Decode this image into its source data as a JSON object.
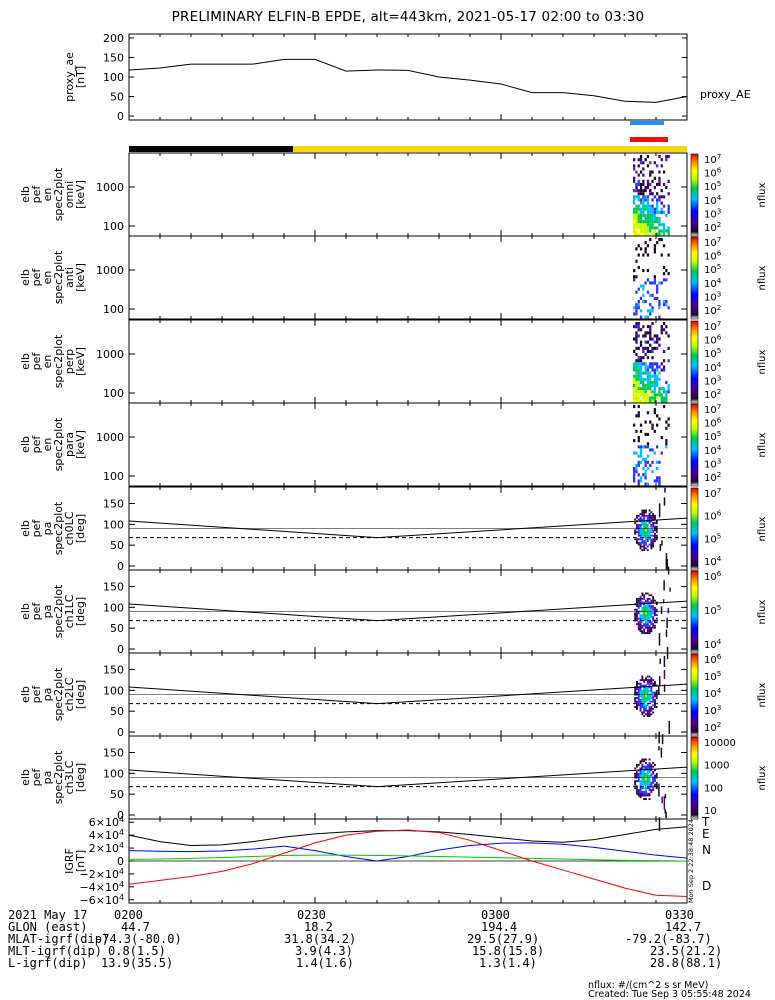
{
  "title": "PRELIMINARY ELFIN-B EPDE, alt=443km, 2021-05-17 02:00 to 03:30",
  "chart_data": [
    {
      "type": "line",
      "ylabel_lines": [
        "proxy_ae",
        "[nT]"
      ],
      "legend": "proxy_AE",
      "yticks": [
        "200",
        "150",
        "100",
        "50",
        "0"
      ],
      "ylim": [
        -10,
        210
      ],
      "x_minutes": [
        0,
        5,
        10,
        15,
        20,
        25,
        30,
        35,
        40,
        45,
        50,
        55,
        60,
        65,
        70,
        75,
        80,
        85,
        90
      ],
      "values": [
        118,
        123,
        133,
        133,
        133,
        145,
        145,
        115,
        118,
        117,
        100,
        92,
        82,
        60,
        60,
        52,
        38,
        35,
        50
      ]
    },
    {
      "type": "heatmap",
      "ylabel_lines": [
        "elb",
        "pef",
        "en",
        "spec2plot",
        "omni",
        "[keV]"
      ],
      "yticks": [
        "1000",
        "100"
      ],
      "cbar_ticks": [
        "10^7",
        "10^6",
        "10^5",
        "10^4",
        "10^3",
        "10^2"
      ],
      "cbar_label": "nflux"
    },
    {
      "type": "heatmap",
      "ylabel_lines": [
        "elb",
        "pef",
        "en",
        "spec2plot",
        "anti",
        "[keV]"
      ],
      "yticks": [
        "1000",
        "100"
      ],
      "cbar_ticks": [
        "10^7",
        "10^6",
        "10^5",
        "10^4",
        "10^3",
        "10^2"
      ],
      "cbar_label": "nflux"
    },
    {
      "type": "heatmap",
      "ylabel_lines": [
        "elb",
        "pef",
        "en",
        "spec2plot",
        "perp",
        "[keV]"
      ],
      "yticks": [
        "1000",
        "100"
      ],
      "cbar_ticks": [
        "10^7",
        "10^6",
        "10^5",
        "10^4",
        "10^3",
        "10^2"
      ],
      "cbar_label": "nflux"
    },
    {
      "type": "heatmap",
      "ylabel_lines": [
        "elb",
        "pef",
        "en",
        "spec2plot",
        "para",
        "[keV]"
      ],
      "yticks": [
        "1000",
        "100"
      ],
      "cbar_ticks": [
        "10^7",
        "10^6",
        "10^5",
        "10^4",
        "10^3",
        "10^2"
      ],
      "cbar_label": "nflux"
    },
    {
      "type": "heatmap",
      "ylabel_lines": [
        "elb",
        "pef",
        "pa",
        "spec2plot",
        "ch0LC",
        "[deg]"
      ],
      "yticks": [
        "150",
        "100",
        "50",
        "0"
      ],
      "cbar_ticks": [
        "10^7",
        "10^6",
        "10^5",
        "10^4"
      ],
      "cbar_label": "nflux"
    },
    {
      "type": "heatmap",
      "ylabel_lines": [
        "elb",
        "pef",
        "pa",
        "spec2plot",
        "ch1LC",
        "[deg]"
      ],
      "yticks": [
        "150",
        "100",
        "50",
        "0"
      ],
      "cbar_ticks": [
        "10^6",
        "10^5",
        "10^4"
      ],
      "cbar_label": "nflux"
    },
    {
      "type": "heatmap",
      "ylabel_lines": [
        "elb",
        "pef",
        "pa",
        "spec2plot",
        "ch2LC",
        "[deg]"
      ],
      "yticks": [
        "150",
        "100",
        "50",
        "0"
      ],
      "cbar_ticks": [
        "10^6",
        "10^5",
        "10^4",
        "10^3",
        "10^2"
      ],
      "cbar_label": "nflux"
    },
    {
      "type": "heatmap",
      "ylabel_lines": [
        "elb",
        "pef",
        "pa",
        "spec2plot",
        "ch3LC",
        "[deg]"
      ],
      "yticks": [
        "150",
        "100",
        "50",
        "0"
      ],
      "cbar_ticks": [
        "10000",
        "1000",
        "100",
        "10"
      ],
      "cbar_label": "nflux"
    },
    {
      "type": "line",
      "ylabel_lines": [
        "IGRF",
        "[nT]"
      ],
      "yticks": [
        "6×10^4",
        "4×10^4",
        "2×10^4",
        "0",
        "−2×10^4",
        "−4×10^4",
        "−6×10^4"
      ],
      "ylim": [
        -65000,
        65000
      ],
      "legend": [
        "T",
        "E",
        "N",
        "D"
      ],
      "side_text": "Mon Sep  2 22:38:48 2024",
      "x_minutes": [
        0,
        5,
        10,
        15,
        20,
        25,
        30,
        35,
        40,
        45,
        50,
        55,
        60,
        65,
        70,
        75,
        80,
        85,
        90
      ],
      "series": [
        {
          "name": "T",
          "color": "#000000",
          "values": [
            40000,
            30000,
            24000,
            25000,
            30000,
            37000,
            42000,
            45000,
            47000,
            47000,
            45000,
            41000,
            36000,
            31000,
            29000,
            33000,
            41000,
            49000,
            53000
          ]
        },
        {
          "name": "N",
          "color": "#0000ff",
          "values": [
            16000,
            15000,
            14500,
            15500,
            18500,
            23000,
            16000,
            7000,
            0,
            7000,
            17000,
            24000,
            27500,
            28000,
            26000,
            21000,
            15000,
            9000,
            4500
          ]
        },
        {
          "name": "E",
          "color": "#00cc00",
          "values": [
            2500,
            3000,
            4000,
            5500,
            7000,
            8500,
            9000,
            9000,
            8500,
            8000,
            7000,
            6000,
            5000,
            4000,
            3000,
            2000,
            1000,
            500,
            0
          ]
        },
        {
          "name": "D",
          "color": "#ff0000",
          "values": [
            -36000,
            -30000,
            -24000,
            -16000,
            -4000,
            12000,
            28000,
            40000,
            46000,
            48000,
            44000,
            32000,
            16000,
            0,
            -14000,
            -28000,
            -42000,
            -53000,
            -55000
          ]
        }
      ]
    }
  ],
  "time_labels": [
    "0200",
    "0230",
    "0300",
    "0330"
  ],
  "ephemeris": {
    "rows": [
      {
        "label": "2021 May 17",
        "values": [
          "",
          "",
          "",
          ""
        ]
      },
      {
        "label": "GLON (east)",
        "values": [
          "44.7",
          "18.2",
          "194.4",
          "142.7"
        ]
      },
      {
        "label": "MLAT-igrf(dip)",
        "values": [
          "-74.3(-80.0)",
          "31.8(34.2)",
          "29.5(27.9)",
          "-79.2(-83.7)"
        ]
      },
      {
        "label": "MLT-igrf(dip)",
        "values": [
          "0.8(1.5)",
          "3.9(4.3)",
          "15.8(15.8)",
          "23.5(21.2)"
        ]
      },
      {
        "label": "L-igrf(dip)",
        "values": [
          "13.9(35.5)",
          "1.4(1.6)",
          "1.3(1.4)",
          "28.8(88.1)"
        ]
      }
    ]
  },
  "footer": {
    "units": "nflux: #/(cm^2 s sr MeV)",
    "created": "Created: Tue Sep  3 05:55:48 2024"
  },
  "colors": {
    "sunlit_bar": "#ffd700",
    "eclipse_bar": "#000000",
    "fgm_bar": "#1e90ff",
    "epd_bar": "#ee1111"
  }
}
